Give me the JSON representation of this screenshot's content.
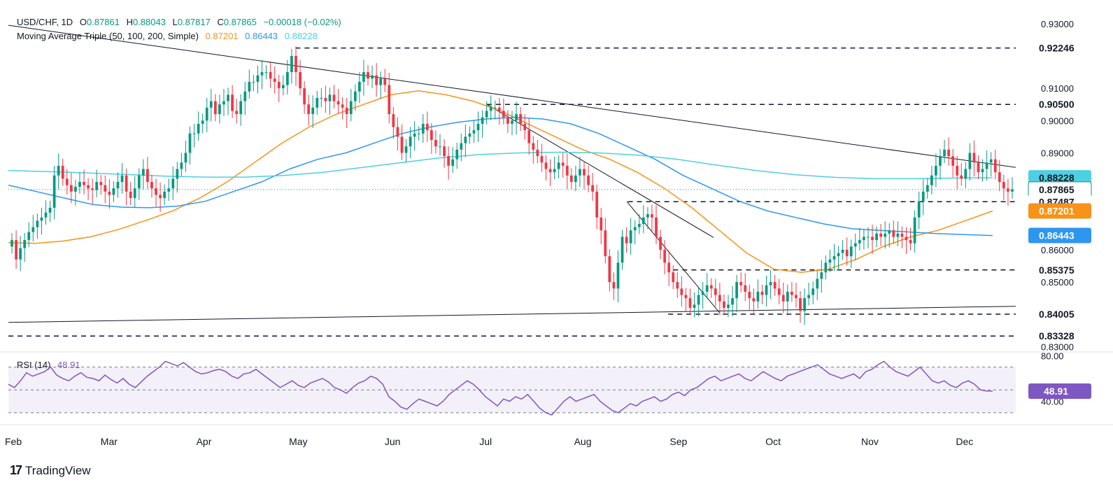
{
  "header": {
    "symbol": "USD/CHF, 1D",
    "open_label": "O",
    "open": "0.87861",
    "high_label": "H",
    "high": "0.88043",
    "low_label": "L",
    "low": "0.87817",
    "close_label": "C",
    "close": "0.87865",
    "change": "−0.00018 (−0.02%)",
    "ma_label": "Moving Average Triple (50, 100, 200, Simple)",
    "ma50": "0.87201",
    "ma100": "0.86443",
    "ma200": "0.88228"
  },
  "rsi_header": {
    "label": "RSI (14)",
    "value": "48.91"
  },
  "brand": {
    "name": "TradingView"
  },
  "colors": {
    "up": "#089981",
    "down": "#f23645",
    "ma50": "#f7931a",
    "ma100": "#2f96f0",
    "ma200": "#4dd0e1",
    "rsi": "#7e57c2",
    "price": "#089981"
  },
  "chart_data": [
    {
      "type": "line",
      "title": "USD/CHF, 1D",
      "ylim": [
        0.829,
        0.933
      ],
      "y_ticks": [
        "0.93000",
        "0.91000",
        "0.90000",
        "0.89000",
        "0.86000",
        "0.85000",
        "0.83000"
      ],
      "x_labels": [
        "Feb",
        "Mar",
        "Apr",
        "May",
        "Jun",
        "Jul",
        "Aug",
        "Sep",
        "Oct",
        "Nov",
        "Dec"
      ],
      "grid": false,
      "price_labels": [
        {
          "text": "0.92246",
          "value": 0.92246,
          "style": "plain"
        },
        {
          "text": "0.90500",
          "value": 0.905,
          "style": "plain"
        },
        {
          "text": "0.88228",
          "value": 0.88228,
          "style": "ma200"
        },
        {
          "text": "0.87865",
          "value": 0.87865,
          "style": "price"
        },
        {
          "text": "0.87487",
          "value": 0.87487,
          "style": "plain"
        },
        {
          "text": "0.87201",
          "value": 0.87201,
          "style": "ma50"
        },
        {
          "text": "0.86443",
          "value": 0.86443,
          "style": "ma100"
        },
        {
          "text": "0.85375",
          "value": 0.85375,
          "style": "plain"
        },
        {
          "text": "0.84005",
          "value": 0.84005,
          "style": "plain"
        },
        {
          "text": "0.83328",
          "value": 0.83328,
          "style": "plain"
        }
      ],
      "horizontal_levels": [
        0.92246,
        0.905,
        0.87487,
        0.85375,
        0.84005,
        0.83328
      ],
      "close_series": [
        0.863,
        0.857,
        0.8605,
        0.863,
        0.8655,
        0.867,
        0.869,
        0.87,
        0.8715,
        0.873,
        0.883,
        0.886,
        0.882,
        0.88,
        0.878,
        0.8795,
        0.881,
        0.88,
        0.879,
        0.8785,
        0.881,
        0.88,
        0.878,
        0.877,
        0.879,
        0.881,
        0.883,
        0.878,
        0.876,
        0.879,
        0.883,
        0.885,
        0.881,
        0.879,
        0.877,
        0.876,
        0.878,
        0.879,
        0.882,
        0.885,
        0.887,
        0.89,
        0.896,
        0.896,
        0.899,
        0.9,
        0.904,
        0.906,
        0.902,
        0.905,
        0.906,
        0.908,
        0.903,
        0.902,
        0.906,
        0.909,
        0.912,
        0.912,
        0.914,
        0.915,
        0.915,
        0.913,
        0.912,
        0.91,
        0.911,
        0.915,
        0.92,
        0.915,
        0.91,
        0.905,
        0.902,
        0.904,
        0.907,
        0.907,
        0.906,
        0.908,
        0.906,
        0.905,
        0.904,
        0.902,
        0.906,
        0.909,
        0.912,
        0.915,
        0.913,
        0.914,
        0.911,
        0.913,
        0.911,
        0.902,
        0.898,
        0.895,
        0.89,
        0.892,
        0.895,
        0.896,
        0.896,
        0.899,
        0.897,
        0.894,
        0.892,
        0.892,
        0.889,
        0.886,
        0.888,
        0.891,
        0.893,
        0.895,
        0.896,
        0.897,
        0.899,
        0.901,
        0.903,
        0.904,
        0.904,
        0.903,
        0.901,
        0.899,
        0.9,
        0.902,
        0.899,
        0.897,
        0.893,
        0.891,
        0.889,
        0.887,
        0.885,
        0.884,
        0.885,
        0.887,
        0.886,
        0.883,
        0.881,
        0.883,
        0.885,
        0.883,
        0.88,
        0.878,
        0.87,
        0.866,
        0.858,
        0.85,
        0.848,
        0.856,
        0.864,
        0.862,
        0.866,
        0.867,
        0.868,
        0.87,
        0.871,
        0.87,
        0.864,
        0.86,
        0.856,
        0.853,
        0.85,
        0.848,
        0.846,
        0.845,
        0.842,
        0.843,
        0.846,
        0.847,
        0.849,
        0.848,
        0.846,
        0.844,
        0.842,
        0.843,
        0.845,
        0.85,
        0.849,
        0.847,
        0.845,
        0.844,
        0.847,
        0.846,
        0.849,
        0.85,
        0.848,
        0.846,
        0.844,
        0.847,
        0.846,
        0.845,
        0.841,
        0.845,
        0.846,
        0.848,
        0.851,
        0.853,
        0.856,
        0.857,
        0.858,
        0.859,
        0.86,
        0.858,
        0.861,
        0.862,
        0.863,
        0.864,
        0.864,
        0.863,
        0.865,
        0.864,
        0.865,
        0.866,
        0.864,
        0.865,
        0.864,
        0.863,
        0.862,
        0.87,
        0.875,
        0.878,
        0.88,
        0.883,
        0.886,
        0.889,
        0.891,
        0.889,
        0.886,
        0.883,
        0.882,
        0.885,
        0.89,
        0.887,
        0.884,
        0.885,
        0.887,
        0.888,
        0.884,
        0.881,
        0.879,
        0.878,
        0.8787
      ],
      "series": [
        {
          "name": "MA 50",
          "color": "#f7931a",
          "values": [
            0.8622,
            0.862,
            0.8627,
            0.864,
            0.8662,
            0.869,
            0.872,
            0.876,
            0.881,
            0.887,
            0.893,
            0.898,
            0.902,
            0.905,
            0.908,
            0.9092,
            0.908,
            0.906,
            0.903,
            0.899,
            0.895,
            0.891,
            0.888,
            0.884,
            0.879,
            0.873,
            0.866,
            0.859,
            0.854,
            0.853,
            0.854,
            0.857,
            0.861,
            0.864,
            0.866,
            0.869,
            0.872
          ]
        },
        {
          "name": "MA 100",
          "color": "#2f96f0",
          "values": [
            0.88,
            0.878,
            0.876,
            0.874,
            0.8732,
            0.873,
            0.8735,
            0.875,
            0.878,
            0.881,
            0.885,
            0.888,
            0.89,
            0.893,
            0.896,
            0.898,
            0.8995,
            0.9005,
            0.901,
            0.9005,
            0.899,
            0.896,
            0.892,
            0.888,
            0.883,
            0.879,
            0.875,
            0.872,
            0.87,
            0.868,
            0.8665,
            0.866,
            0.8655,
            0.865,
            0.8647,
            0.8644
          ]
        },
        {
          "name": "MA 200",
          "color": "#4dd0e1",
          "values": [
            0.8845,
            0.8842,
            0.8838,
            0.8833,
            0.8828,
            0.8825,
            0.8825,
            0.883,
            0.884,
            0.8855,
            0.887,
            0.8885,
            0.8895,
            0.89,
            0.8902,
            0.89,
            0.8893,
            0.888,
            0.8862,
            0.8845,
            0.8832,
            0.8824,
            0.882,
            0.882,
            0.8822,
            0.8823
          ]
        }
      ]
    },
    {
      "type": "line",
      "title": "RSI (14)",
      "ylim": [
        25,
        82
      ],
      "y_ticks": [
        "80.00",
        "40.00"
      ],
      "bands": [
        70,
        50,
        30
      ],
      "series": [
        {
          "name": "RSI",
          "color": "#7e57c2",
          "values": [
            55,
            52,
            58,
            65,
            62,
            64,
            66,
            70,
            63,
            60,
            58,
            62,
            65,
            61,
            60,
            58,
            63,
            59,
            56,
            60,
            55,
            52,
            57,
            62,
            66,
            70,
            75,
            73,
            71,
            74,
            70,
            66,
            64,
            65,
            67,
            68,
            66,
            62,
            60,
            64,
            65,
            68,
            64,
            60,
            56,
            52,
            55,
            58,
            54,
            52,
            56,
            58,
            60,
            57,
            52,
            50,
            47,
            52,
            56,
            58,
            62,
            60,
            55,
            44,
            40,
            35,
            33,
            38,
            42,
            40,
            38,
            36,
            40,
            46,
            50,
            54,
            58,
            55,
            50,
            44,
            40,
            36,
            42,
            40,
            44,
            42,
            46,
            40,
            34,
            30,
            28,
            34,
            40,
            44,
            40,
            42,
            44,
            46,
            40,
            36,
            32,
            30,
            34,
            38,
            36,
            40,
            42,
            44,
            40,
            42,
            46,
            48,
            45,
            50,
            52,
            56,
            60,
            62,
            58,
            60,
            62,
            64,
            60,
            58,
            62,
            66,
            63,
            60,
            58,
            62,
            64,
            66,
            68,
            70,
            72,
            68,
            64,
            62,
            60,
            62,
            64,
            60,
            66,
            68,
            72,
            75,
            70,
            66,
            64,
            62,
            66,
            70,
            64,
            58,
            56,
            58,
            54,
            52,
            56,
            58,
            55,
            50,
            49,
            48.91
          ]
        }
      ]
    }
  ]
}
